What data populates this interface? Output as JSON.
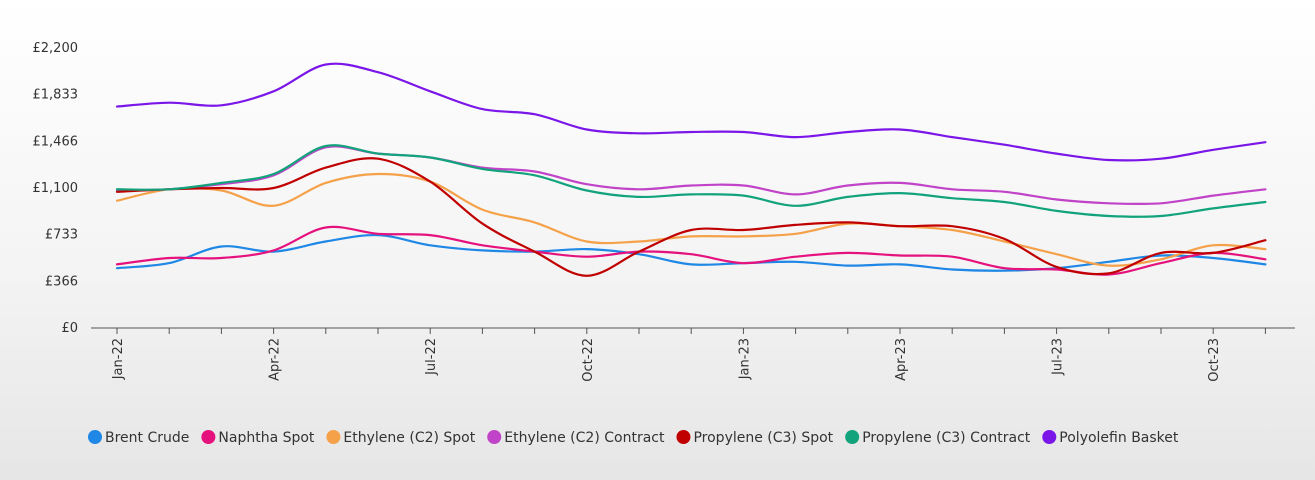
{
  "chart_data": {
    "type": "line",
    "x": [
      "Jan-22",
      "Feb-22",
      "Mar-22",
      "Apr-22",
      "May-22",
      "Jun-22",
      "Jul-22",
      "Aug-22",
      "Sep-22",
      "Oct-22",
      "Nov-22",
      "Dec-22",
      "Jan-23",
      "Feb-23",
      "Mar-23",
      "Apr-23",
      "May-23",
      "Jun-23",
      "Jul-23",
      "Aug-23",
      "Sep-23",
      "Oct-23",
      "Nov-23"
    ],
    "x_tick_labels": [
      "Jan-22",
      "",
      "",
      "Apr-22",
      "",
      "",
      "Jul-22",
      "",
      "",
      "Oct-22",
      "",
      "",
      "Jan-23",
      "",
      "",
      "Apr-23",
      "",
      "",
      "Jul-23",
      "",
      "",
      "Oct-23",
      ""
    ],
    "y_ticks": [
      0,
      366,
      733,
      1100,
      1466,
      1833,
      2200
    ],
    "y_tick_labels": [
      "£0",
      "£366",
      "£733",
      "£1,100",
      "£1,466",
      "£1,833",
      "£2,200"
    ],
    "ylim": [
      0,
      2200
    ],
    "grid": false,
    "legend_position": "bottom",
    "series": [
      {
        "name": "Brent Crude",
        "color": "#1f87e5",
        "values": [
          470,
          510,
          640,
          600,
          680,
          730,
          650,
          610,
          600,
          620,
          580,
          500,
          510,
          520,
          490,
          500,
          460,
          450,
          470,
          520,
          570,
          550,
          500
        ]
      },
      {
        "name": "Naphtha Spot",
        "color": "#e5127d",
        "values": [
          500,
          550,
          550,
          610,
          790,
          740,
          730,
          650,
          600,
          560,
          600,
          580,
          510,
          560,
          590,
          570,
          560,
          470,
          460,
          420,
          510,
          590,
          540
        ]
      },
      {
        "name": "Ethylene (C2) Spot",
        "color": "#f5a14a",
        "values": [
          1000,
          1090,
          1080,
          960,
          1140,
          1210,
          1150,
          930,
          830,
          680,
          680,
          720,
          720,
          740,
          820,
          800,
          770,
          680,
          580,
          490,
          540,
          650,
          620
        ]
      },
      {
        "name": "Ethylene (C2) Contract",
        "color": "#c043c8",
        "values": [
          1080,
          1090,
          1130,
          1200,
          1420,
          1370,
          1340,
          1260,
          1230,
          1130,
          1090,
          1120,
          1120,
          1050,
          1120,
          1140,
          1090,
          1070,
          1010,
          980,
          980,
          1040,
          1090
        ]
      },
      {
        "name": "Propylene (C3) Spot",
        "color": "#c00000",
        "values": [
          1070,
          1090,
          1100,
          1100,
          1260,
          1330,
          1150,
          820,
          600,
          410,
          600,
          770,
          770,
          810,
          830,
          800,
          800,
          700,
          480,
          430,
          590,
          590,
          690
        ]
      },
      {
        "name": "Propylene (C3) Contract",
        "color": "#12a37c",
        "values": [
          1090,
          1090,
          1140,
          1210,
          1430,
          1370,
          1340,
          1250,
          1200,
          1080,
          1030,
          1050,
          1040,
          960,
          1030,
          1060,
          1020,
          990,
          920,
          880,
          880,
          940,
          990
        ]
      },
      {
        "name": "Polyolefin Basket",
        "color": "#7b16e8",
        "values": [
          1740,
          1770,
          1750,
          1860,
          2070,
          2010,
          1860,
          1720,
          1680,
          1560,
          1530,
          1540,
          1540,
          1500,
          1540,
          1560,
          1500,
          1440,
          1370,
          1320,
          1330,
          1400,
          1460
        ]
      }
    ]
  }
}
